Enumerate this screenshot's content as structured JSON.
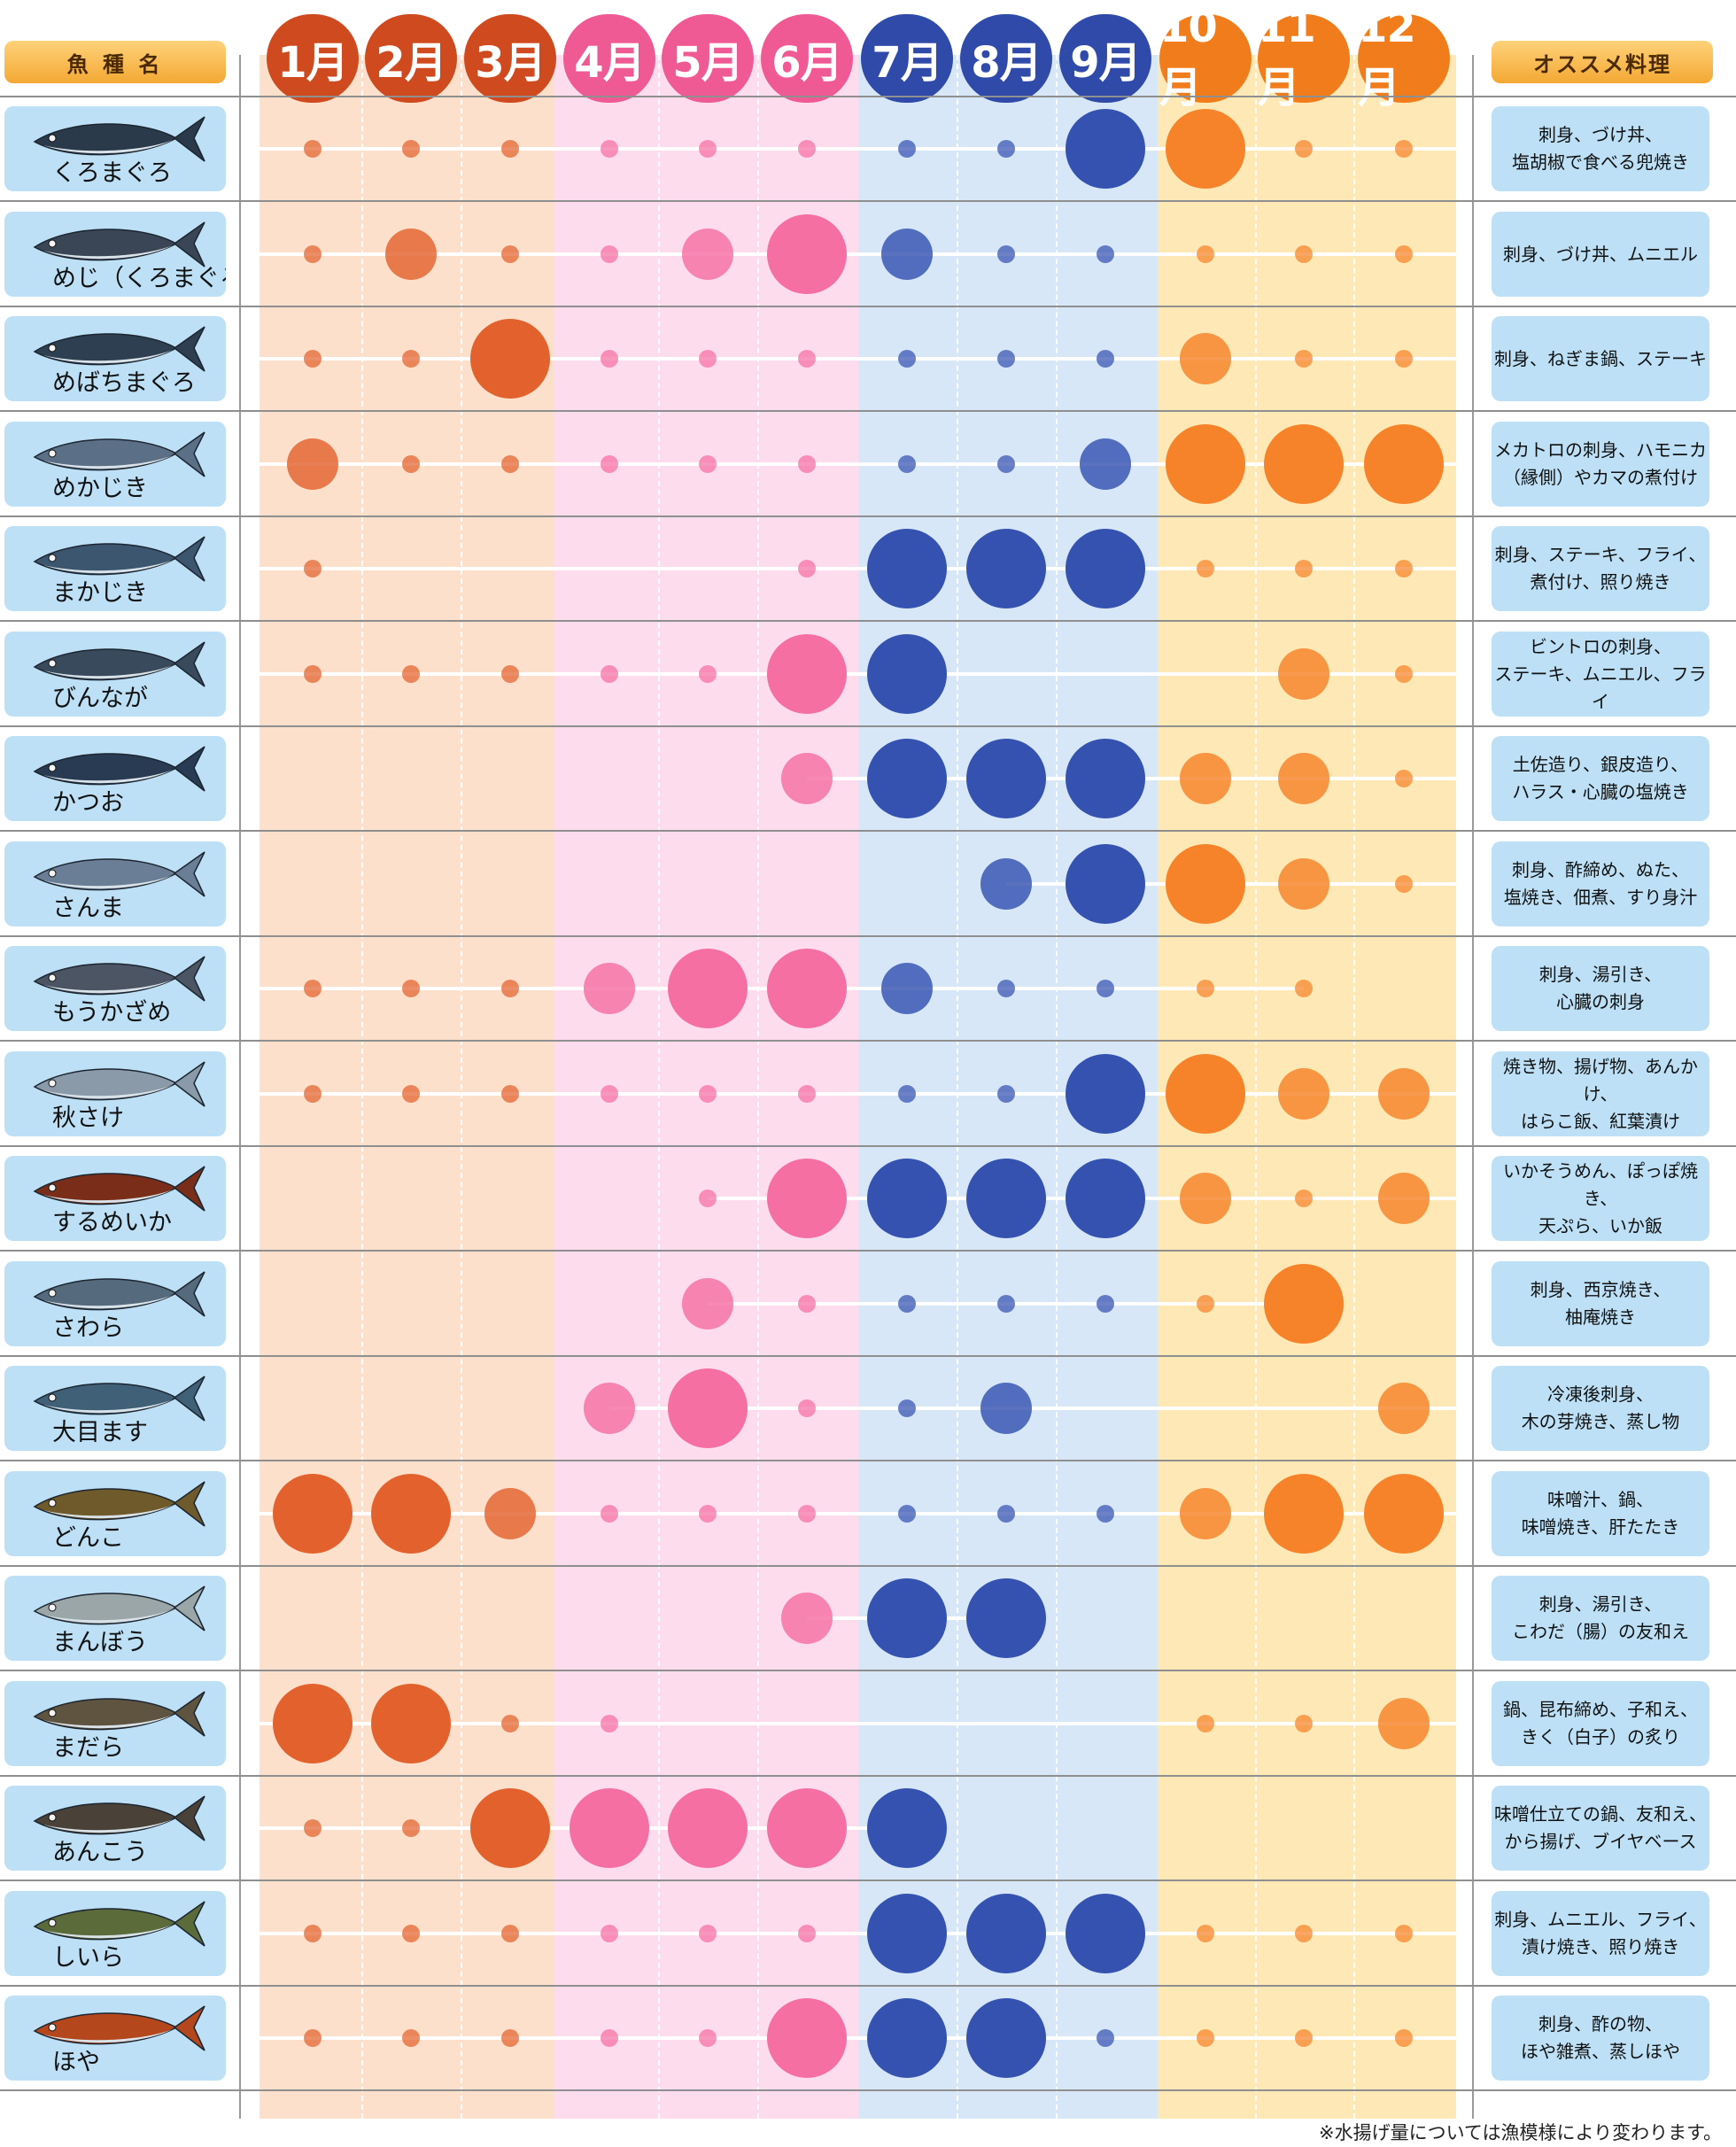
{
  "header": {
    "fish_label": "魚 種 名",
    "recommend_label": "オススメ料理"
  },
  "note": "※水揚げ量については漁模様により変わります。",
  "months": [
    "1月",
    "2月",
    "3月",
    "4月",
    "5月",
    "6月",
    "7月",
    "8月",
    "9月",
    "10月",
    "11月",
    "12月"
  ],
  "season_colors": {
    "winter": "#e3612d",
    "spring": "#f56fa3",
    "summer": "#3552b0",
    "autumn": "#f6822a"
  },
  "chart_data": {
    "type": "bubble-matrix",
    "x": [
      "1月",
      "2月",
      "3月",
      "4月",
      "5月",
      "6月",
      "7月",
      "8月",
      "9月",
      "10月",
      "11月",
      "12月"
    ],
    "levels": "0 = none, 1 = small, 2 = medium, 3 = large, 4 = largest",
    "series": [
      {
        "name": "くろまぐろ",
        "recipe": "刺身、づけ丼、\n塩胡椒で食べる兜焼き",
        "values": [
          1,
          1,
          1,
          1,
          1,
          1,
          1,
          1,
          4,
          4,
          1,
          1
        ]
      },
      {
        "name": "めじ（くろまぐろ）",
        "recipe": "刺身、づけ丼、ムニエル",
        "values": [
          1,
          3,
          1,
          1,
          3,
          4,
          3,
          1,
          1,
          1,
          1,
          1
        ]
      },
      {
        "name": "めばちまぐろ",
        "recipe": "刺身、ねぎま鍋、ステーキ",
        "values": [
          1,
          1,
          4,
          1,
          1,
          1,
          1,
          1,
          1,
          3,
          1,
          1
        ]
      },
      {
        "name": "めかじき",
        "recipe": "メカトロの刺身、ハモニカ\n（縁側）やカマの煮付け",
        "values": [
          3,
          1,
          1,
          1,
          1,
          1,
          1,
          1,
          3,
          4,
          4,
          4
        ]
      },
      {
        "name": "まかじき",
        "recipe": "刺身、ステーキ、フライ、\n煮付け、照り焼き",
        "values": [
          1,
          0,
          0,
          0,
          0,
          1,
          4,
          4,
          4,
          1,
          1,
          1
        ]
      },
      {
        "name": "びんなが",
        "recipe": "ビントロの刺身、\nステーキ、ムニエル、フライ",
        "values": [
          1,
          1,
          1,
          1,
          1,
          4,
          4,
          0,
          0,
          0,
          3,
          1
        ]
      },
      {
        "name": "かつお",
        "recipe": "土佐造り、銀皮造り、\nハラス・心臓の塩焼き",
        "values": [
          0,
          0,
          0,
          0,
          0,
          3,
          4,
          4,
          4,
          3,
          3,
          1
        ]
      },
      {
        "name": "さんま",
        "recipe": "刺身、酢締め、ぬた、\n塩焼き、佃煮、すり身汁",
        "values": [
          0,
          0,
          0,
          0,
          0,
          0,
          0,
          3,
          4,
          4,
          3,
          1
        ]
      },
      {
        "name": "もうかざめ",
        "recipe": "刺身、湯引き、\n心臓の刺身",
        "values": [
          1,
          1,
          1,
          3,
          4,
          4,
          3,
          1,
          1,
          1,
          1,
          0
        ]
      },
      {
        "name": "秋さけ",
        "recipe": "焼き物、揚げ物、あんかけ、\nはらこ飯、紅葉漬け",
        "values": [
          1,
          1,
          1,
          1,
          1,
          1,
          1,
          1,
          4,
          4,
          3,
          3
        ]
      },
      {
        "name": "するめいか",
        "recipe": "いかそうめん、ぽっぽ焼き、\n天ぷら、いか飯",
        "values": [
          0,
          0,
          0,
          0,
          1,
          4,
          4,
          4,
          4,
          3,
          1,
          3
        ]
      },
      {
        "name": "さわら",
        "recipe": "刺身、西京焼き、\n柚庵焼き",
        "values": [
          0,
          0,
          0,
          0,
          3,
          1,
          1,
          1,
          1,
          1,
          4,
          0
        ]
      },
      {
        "name": "大目ます",
        "recipe": "冷凍後刺身、\n木の芽焼き、蒸し物",
        "values": [
          0,
          0,
          0,
          3,
          4,
          1,
          1,
          3,
          0,
          0,
          0,
          3
        ]
      },
      {
        "name": "どんこ",
        "recipe": "味噌汁、鍋、\n味噌焼き、肝たたき",
        "values": [
          4,
          4,
          3,
          1,
          1,
          1,
          1,
          1,
          1,
          3,
          4,
          4
        ]
      },
      {
        "name": "まんぼう",
        "recipe": "刺身、湯引き、\nこわだ（腸）の友和え",
        "values": [
          0,
          0,
          0,
          0,
          0,
          3,
          4,
          4,
          0,
          0,
          0,
          0
        ]
      },
      {
        "name": "まだら",
        "recipe": "鍋、昆布締め、子和え、\nきく（白子）の炙り",
        "values": [
          4,
          4,
          1,
          1,
          0,
          0,
          0,
          0,
          0,
          1,
          1,
          3
        ]
      },
      {
        "name": "あんこう",
        "recipe": "味噌仕立ての鍋、友和え、\nから揚げ、ブイヤベース",
        "values": [
          1,
          1,
          4,
          4,
          4,
          4,
          4,
          0,
          0,
          0,
          0,
          0
        ]
      },
      {
        "name": "しいら",
        "recipe": "刺身、ムニエル、フライ、\n漬け焼き、照り焼き",
        "values": [
          1,
          1,
          1,
          1,
          1,
          1,
          4,
          4,
          4,
          1,
          1,
          1
        ]
      },
      {
        "name": "ほや",
        "recipe": "刺身、酢の物、\nほや雑煮、蒸しほや",
        "values": [
          1,
          1,
          1,
          1,
          1,
          4,
          4,
          4,
          1,
          1,
          1,
          1
        ]
      }
    ]
  }
}
